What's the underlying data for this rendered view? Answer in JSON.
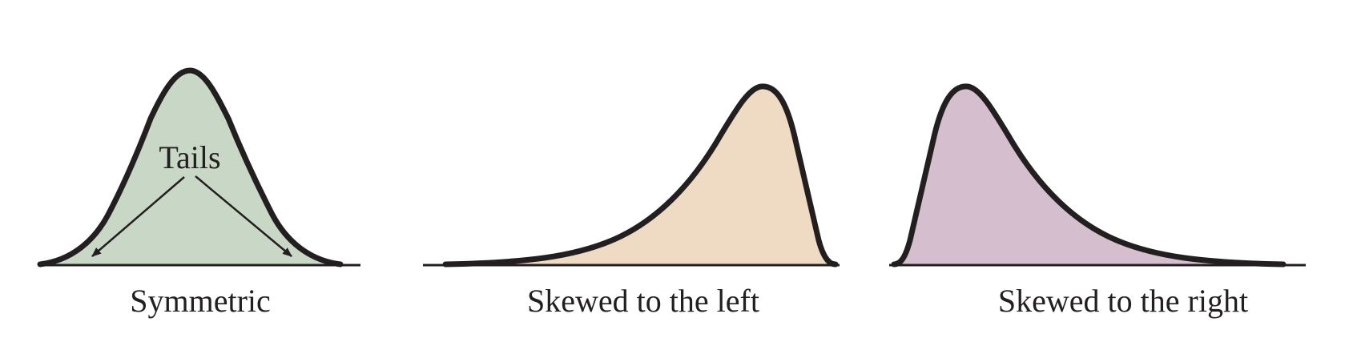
{
  "diagram": {
    "annotation": "Tails",
    "panels": [
      {
        "id": "symmetric",
        "caption": "Symmetric",
        "fill_color": "#c9d8c6"
      },
      {
        "id": "skewed-left",
        "caption": "Skewed to the left",
        "fill_color": "#efdbc3"
      },
      {
        "id": "skewed-right",
        "caption": "Skewed to the right",
        "fill_color": "#d5bfce"
      }
    ],
    "stroke_color": "#231f20"
  }
}
